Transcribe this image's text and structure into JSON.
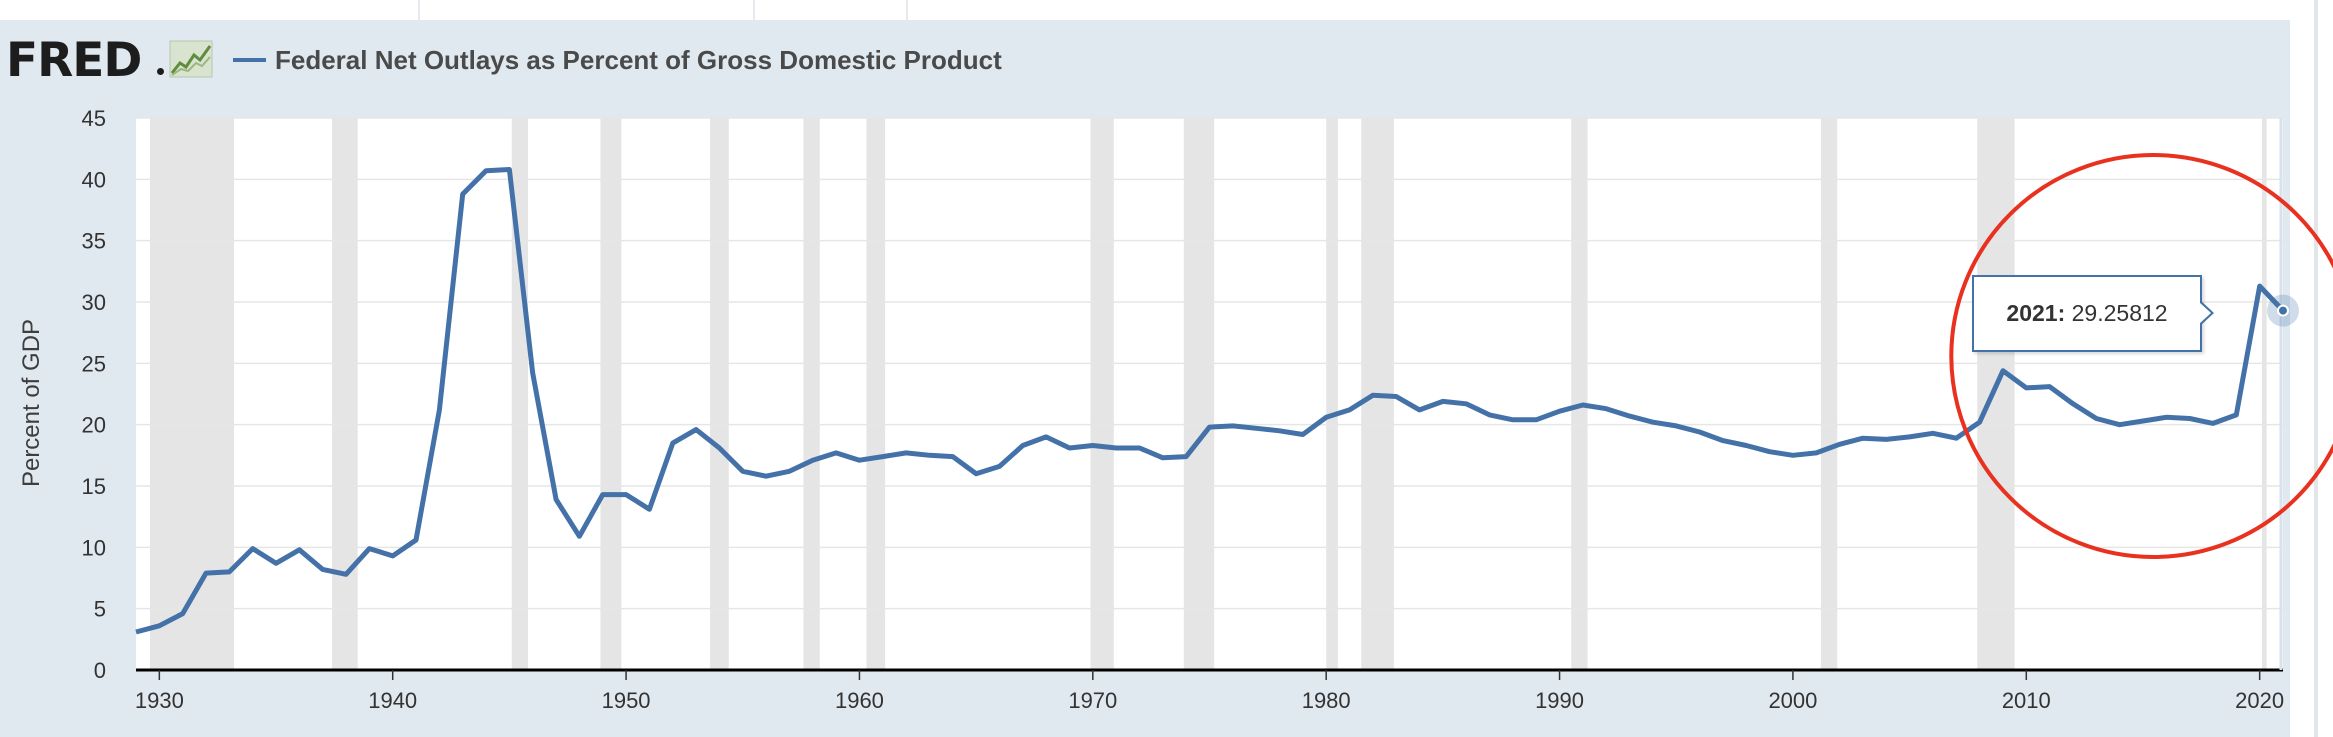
{
  "header": {
    "logo_text": "FRED",
    "logo_icon": "line-chart-icon",
    "series_label": "Federal Net Outlays as Percent of Gross Domestic Product"
  },
  "tooltip": {
    "year_label": "2021:",
    "value_label": "29.25812"
  },
  "colors": {
    "series": "#4472a8",
    "recession": "#e5e5e5",
    "panel": "#e1e9f0",
    "annotation_circle": "#e8321f"
  },
  "annotation": {
    "shape": "circle",
    "around_years": [
      2008,
      2021
    ]
  },
  "chart_data": {
    "type": "line",
    "title": "",
    "xlabel": "",
    "ylabel": "Percent of GDP",
    "xlim": [
      1929,
      2021
    ],
    "ylim": [
      0,
      45
    ],
    "x_ticks": [
      1930,
      1940,
      1950,
      1960,
      1970,
      1980,
      1990,
      2000,
      2010,
      2020
    ],
    "y_ticks": [
      0,
      5,
      10,
      15,
      20,
      25,
      30,
      35,
      40,
      45
    ],
    "grid": true,
    "legend": "top-left",
    "recessions": [
      [
        1929.6,
        1933.2
      ],
      [
        1937.4,
        1938.5
      ],
      [
        1945.1,
        1945.8
      ],
      [
        1948.9,
        1949.8
      ],
      [
        1953.6,
        1954.4
      ],
      [
        1957.6,
        1958.3
      ],
      [
        1960.3,
        1961.1
      ],
      [
        1969.9,
        1970.9
      ],
      [
        1973.9,
        1975.2
      ],
      [
        1980.0,
        1980.5
      ],
      [
        1981.5,
        1982.9
      ],
      [
        1990.5,
        1991.2
      ],
      [
        2001.2,
        2001.9
      ],
      [
        2007.9,
        2009.5
      ],
      [
        2020.1,
        2020.3
      ]
    ],
    "series": [
      {
        "name": "Federal Net Outlays as Percent of Gross Domestic Product",
        "x": [
          1929,
          1930,
          1931,
          1932,
          1933,
          1934,
          1935,
          1936,
          1937,
          1938,
          1939,
          1940,
          1941,
          1942,
          1943,
          1944,
          1945,
          1946,
          1947,
          1948,
          1949,
          1950,
          1951,
          1952,
          1953,
          1954,
          1955,
          1956,
          1957,
          1958,
          1959,
          1960,
          1961,
          1962,
          1963,
          1964,
          1965,
          1966,
          1967,
          1968,
          1969,
          1970,
          1971,
          1972,
          1973,
          1974,
          1975,
          1976,
          1977,
          1978,
          1979,
          1980,
          1981,
          1982,
          1983,
          1984,
          1985,
          1986,
          1987,
          1988,
          1989,
          1990,
          1991,
          1992,
          1993,
          1994,
          1995,
          1996,
          1997,
          1998,
          1999,
          2000,
          2001,
          2002,
          2003,
          2004,
          2005,
          2006,
          2007,
          2008,
          2009,
          2010,
          2011,
          2012,
          2013,
          2014,
          2015,
          2016,
          2017,
          2018,
          2019,
          2020,
          2021
        ],
        "values": [
          3.1,
          3.6,
          4.6,
          7.9,
          8.0,
          9.9,
          8.7,
          9.8,
          8.2,
          7.8,
          9.9,
          9.3,
          10.6,
          21.2,
          38.8,
          40.7,
          40.8,
          24.2,
          13.9,
          10.9,
          14.3,
          14.3,
          13.1,
          18.5,
          19.6,
          18.1,
          16.2,
          15.8,
          16.2,
          17.1,
          17.7,
          17.1,
          17.4,
          17.7,
          17.5,
          17.4,
          16.0,
          16.6,
          18.3,
          19.0,
          18.1,
          18.3,
          18.1,
          18.1,
          17.3,
          17.4,
          19.8,
          19.9,
          19.7,
          19.5,
          19.2,
          20.6,
          21.2,
          22.4,
          22.3,
          21.2,
          21.9,
          21.7,
          20.8,
          20.4,
          20.4,
          21.1,
          21.6,
          21.3,
          20.7,
          20.2,
          19.9,
          19.4,
          18.7,
          18.3,
          17.8,
          17.5,
          17.7,
          18.4,
          18.9,
          18.8,
          19.0,
          19.3,
          18.9,
          20.2,
          24.4,
          23.0,
          23.1,
          21.7,
          20.5,
          20.0,
          20.3,
          20.6,
          20.5,
          20.1,
          20.8,
          31.3,
          29.3
        ]
      }
    ]
  }
}
